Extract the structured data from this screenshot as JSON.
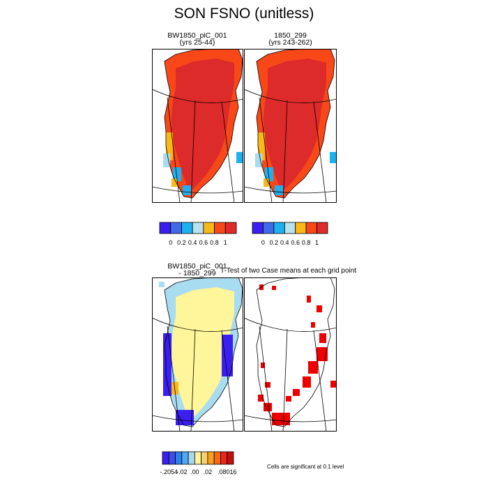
{
  "figure": {
    "title": "SON FSNO (unitless)"
  },
  "chart_data": [
    {
      "type": "heatmap",
      "title": "BW1850_piC_001",
      "subtitle": "(yrs 25-44)",
      "variable": "FSNO",
      "season": "SON",
      "region": "Greenland"
    },
    {
      "type": "heatmap",
      "title": "1850_299",
      "subtitle": "(yrs 243-262)",
      "variable": "FSNO",
      "season": "SON",
      "region": "Greenland"
    },
    {
      "type": "heatmap",
      "title": "BW1850_piC_001",
      "subtitle": "- 1850_299",
      "variable": "FSNO difference",
      "season": "SON",
      "region": "Greenland"
    },
    {
      "type": "heatmap",
      "title": "T-Test of two Case means at each grid point",
      "variable": "significance",
      "region": "Greenland"
    }
  ],
  "colorbars": {
    "abs": {
      "colors": [
        "#3a1ff0",
        "#3f6be8",
        "#1fb0f0",
        "#b8e2f0",
        "#f8b818",
        "#f84818",
        "#dd2a2a"
      ],
      "tick_labels": [
        "0",
        "0.2",
        "0.4",
        "0.6",
        "0.8",
        "1"
      ]
    },
    "diff": {
      "colors": [
        "#3a1ff0",
        "#3a4fe8",
        "#2f7ef0",
        "#4faaf0",
        "#a8d8f0",
        "#fff59a",
        "#f8d070",
        "#f8a020",
        "#f86a18",
        "#e82a1a",
        "#c01010"
      ],
      "tick_labels": [
        "-.2054",
        "-.02",
        ".00",
        ".02",
        ".08016"
      ]
    }
  },
  "footnote": "Cells are significant at 0.1 level",
  "colors": {
    "high": "#dd2a2a",
    "mid_red": "#f84818",
    "orange": "#f8b818",
    "light_blue": "#a8dcf0",
    "blue": "#1fb0f0",
    "yellow": "#fff59a",
    "dark_blue": "#3a1ff0",
    "sig": "#ee0000"
  }
}
